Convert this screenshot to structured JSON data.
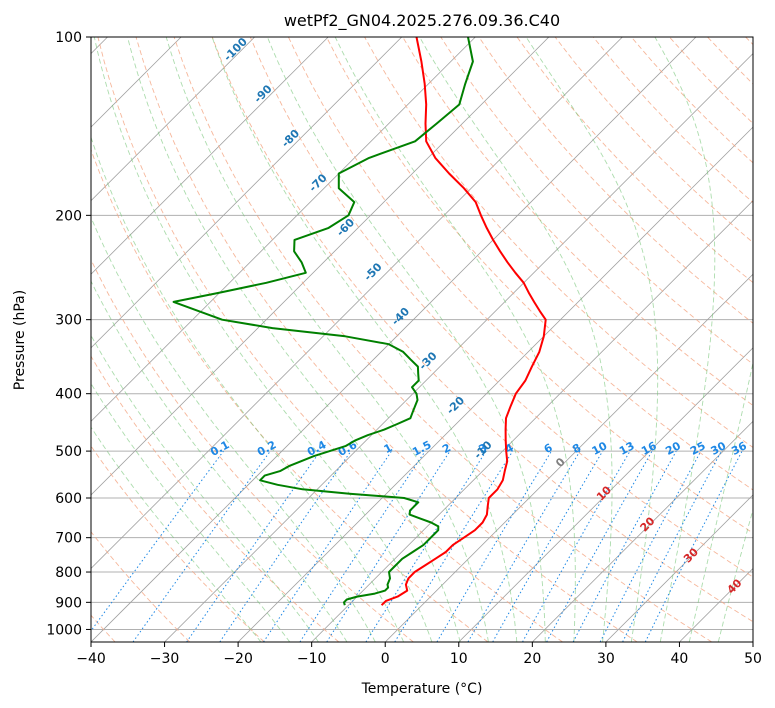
{
  "chart_data": {
    "type": "line",
    "title": "wetPf2_GN04.2025.276.09.36.C40",
    "xlabel": "Temperature (°C)",
    "ylabel": "Pressure (hPa)",
    "xlim": [
      -40,
      50
    ],
    "ylim": [
      1050,
      100
    ],
    "y_scale": "log",
    "grid": true,
    "x_ticks": [
      -40,
      -30,
      -20,
      -10,
      0,
      10,
      20,
      30,
      40,
      50
    ],
    "y_ticks": [
      100,
      200,
      300,
      400,
      500,
      600,
      700,
      800,
      900,
      1000
    ],
    "colors": {
      "temperature": "#ff0000",
      "dewpoint": "#008000",
      "isotherm": "#a0a0a0",
      "dry_adiabat": "#f4a582",
      "moist_adiabat": "#74c476",
      "mixing_ratio": "#1e88e5"
    },
    "series": [
      {
        "p": [
          910,
          895,
          880,
          860,
          840,
          820,
          800,
          780,
          760,
          740,
          720,
          700,
          680,
          660,
          640,
          620,
          600,
          580,
          560,
          540,
          520,
          500,
          480,
          460,
          440,
          420,
          400,
          380,
          360,
          340,
          320,
          300,
          290,
          280,
          270,
          260,
          250,
          240,
          230,
          220,
          210,
          200,
          190,
          180,
          170,
          160,
          150,
          140,
          130,
          120,
          110,
          100
        ],
        "t": [
          -5.5,
          -5.5,
          -4.5,
          -4.0,
          -5.0,
          -5.5,
          -5.5,
          -5.0,
          -4.5,
          -4.0,
          -4.0,
          -3.5,
          -3.0,
          -3.0,
          -3.5,
          -4.5,
          -5.5,
          -5.5,
          -6.0,
          -7.0,
          -8.0,
          -9.5,
          -11.0,
          -12.5,
          -14.0,
          -15.0,
          -16.0,
          -16.5,
          -17.5,
          -18.5,
          -20.0,
          -22.0,
          -24.0,
          -26.0,
          -28.0,
          -30.0,
          -32.5,
          -35.0,
          -37.5,
          -40.0,
          -42.5,
          -45.0,
          -47.5,
          -51.0,
          -55.0,
          -59.0,
          -62.5,
          -65.0,
          -67.5,
          -70.5,
          -74.0,
          -78.0
        ]
      },
      {
        "p": [
          910,
          900,
          890,
          880,
          870,
          860,
          850,
          840,
          820,
          800,
          780,
          760,
          740,
          720,
          700,
          690,
          680,
          670,
          660,
          650,
          640,
          630,
          620,
          610,
          600,
          590,
          580,
          570,
          560,
          550,
          540,
          530,
          520,
          510,
          500,
          490,
          480,
          470,
          460,
          450,
          440,
          430,
          420,
          410,
          400,
          390,
          380,
          370,
          360,
          350,
          340,
          330,
          320,
          310,
          300,
          280,
          270,
          260,
          250,
          240,
          230,
          220,
          210,
          200,
          190,
          180,
          170,
          160,
          150,
          140,
          130,
          120,
          110,
          100
        ],
        "t": [
          -10.5,
          -11.0,
          -11.0,
          -10.0,
          -8.0,
          -7.0,
          -7.0,
          -7.5,
          -8.0,
          -9.0,
          -9.0,
          -9.0,
          -8.5,
          -8.0,
          -8.0,
          -8.0,
          -8.0,
          -8.5,
          -10.0,
          -12.0,
          -14.0,
          -14.5,
          -14.5,
          -14.5,
          -17.0,
          -25.0,
          -32.0,
          -36.0,
          -39.0,
          -39.0,
          -37.5,
          -37.0,
          -36.0,
          -35.0,
          -33.5,
          -32.0,
          -31.5,
          -30.5,
          -29.0,
          -28.0,
          -27.0,
          -27.5,
          -28.0,
          -28.5,
          -29.5,
          -31.0,
          -31.0,
          -32.0,
          -33.0,
          -35.0,
          -37.0,
          -40.0,
          -47.0,
          -58.0,
          -66.0,
          -75.0,
          -70.0,
          -65.0,
          -61.0,
          -63.0,
          -65.5,
          -67.0,
          -64.0,
          -63.0,
          -64.0,
          -68.0,
          -70.0,
          -68.0,
          -64.0,
          -63.5,
          -63.0,
          -65.0,
          -67.0,
          -71.0
        ]
      }
    ],
    "mixing_ratio_labels": [
      "0.1",
      "0.2",
      "0.4",
      "0.6",
      "1",
      "1.5",
      "2",
      "3",
      "4",
      "6",
      "8",
      "10",
      "13",
      "16",
      "20",
      "25",
      "30",
      "36"
    ],
    "mixing_ratio_values": [
      0.1,
      0.2,
      0.4,
      0.6,
      1,
      1.5,
      2,
      3,
      4,
      6,
      8,
      10,
      13,
      16,
      20,
      25,
      30,
      36
    ],
    "dry_adiabat_labels": [
      {
        "text": "-100",
        "value": -100
      },
      {
        "text": "-90",
        "value": -90
      },
      {
        "text": "-80",
        "value": -80
      },
      {
        "text": "-70",
        "value": -70
      },
      {
        "text": "-60",
        "value": -60
      },
      {
        "text": "-50",
        "value": -50
      },
      {
        "text": "-40",
        "value": -40
      },
      {
        "text": "-30",
        "value": -30
      },
      {
        "text": "-20",
        "value": -20
      },
      {
        "text": "-10",
        "value": -10
      }
    ],
    "moist_adiabat_labels": [
      {
        "text": "0",
        "value": 0,
        "color": "#808080"
      },
      {
        "text": "10",
        "value": 10,
        "color": "#d62728"
      },
      {
        "text": "20",
        "value": 20,
        "color": "#d62728"
      },
      {
        "text": "30",
        "value": 30,
        "color": "#d62728"
      },
      {
        "text": "40",
        "value": 40,
        "color": "#d62728"
      }
    ]
  }
}
